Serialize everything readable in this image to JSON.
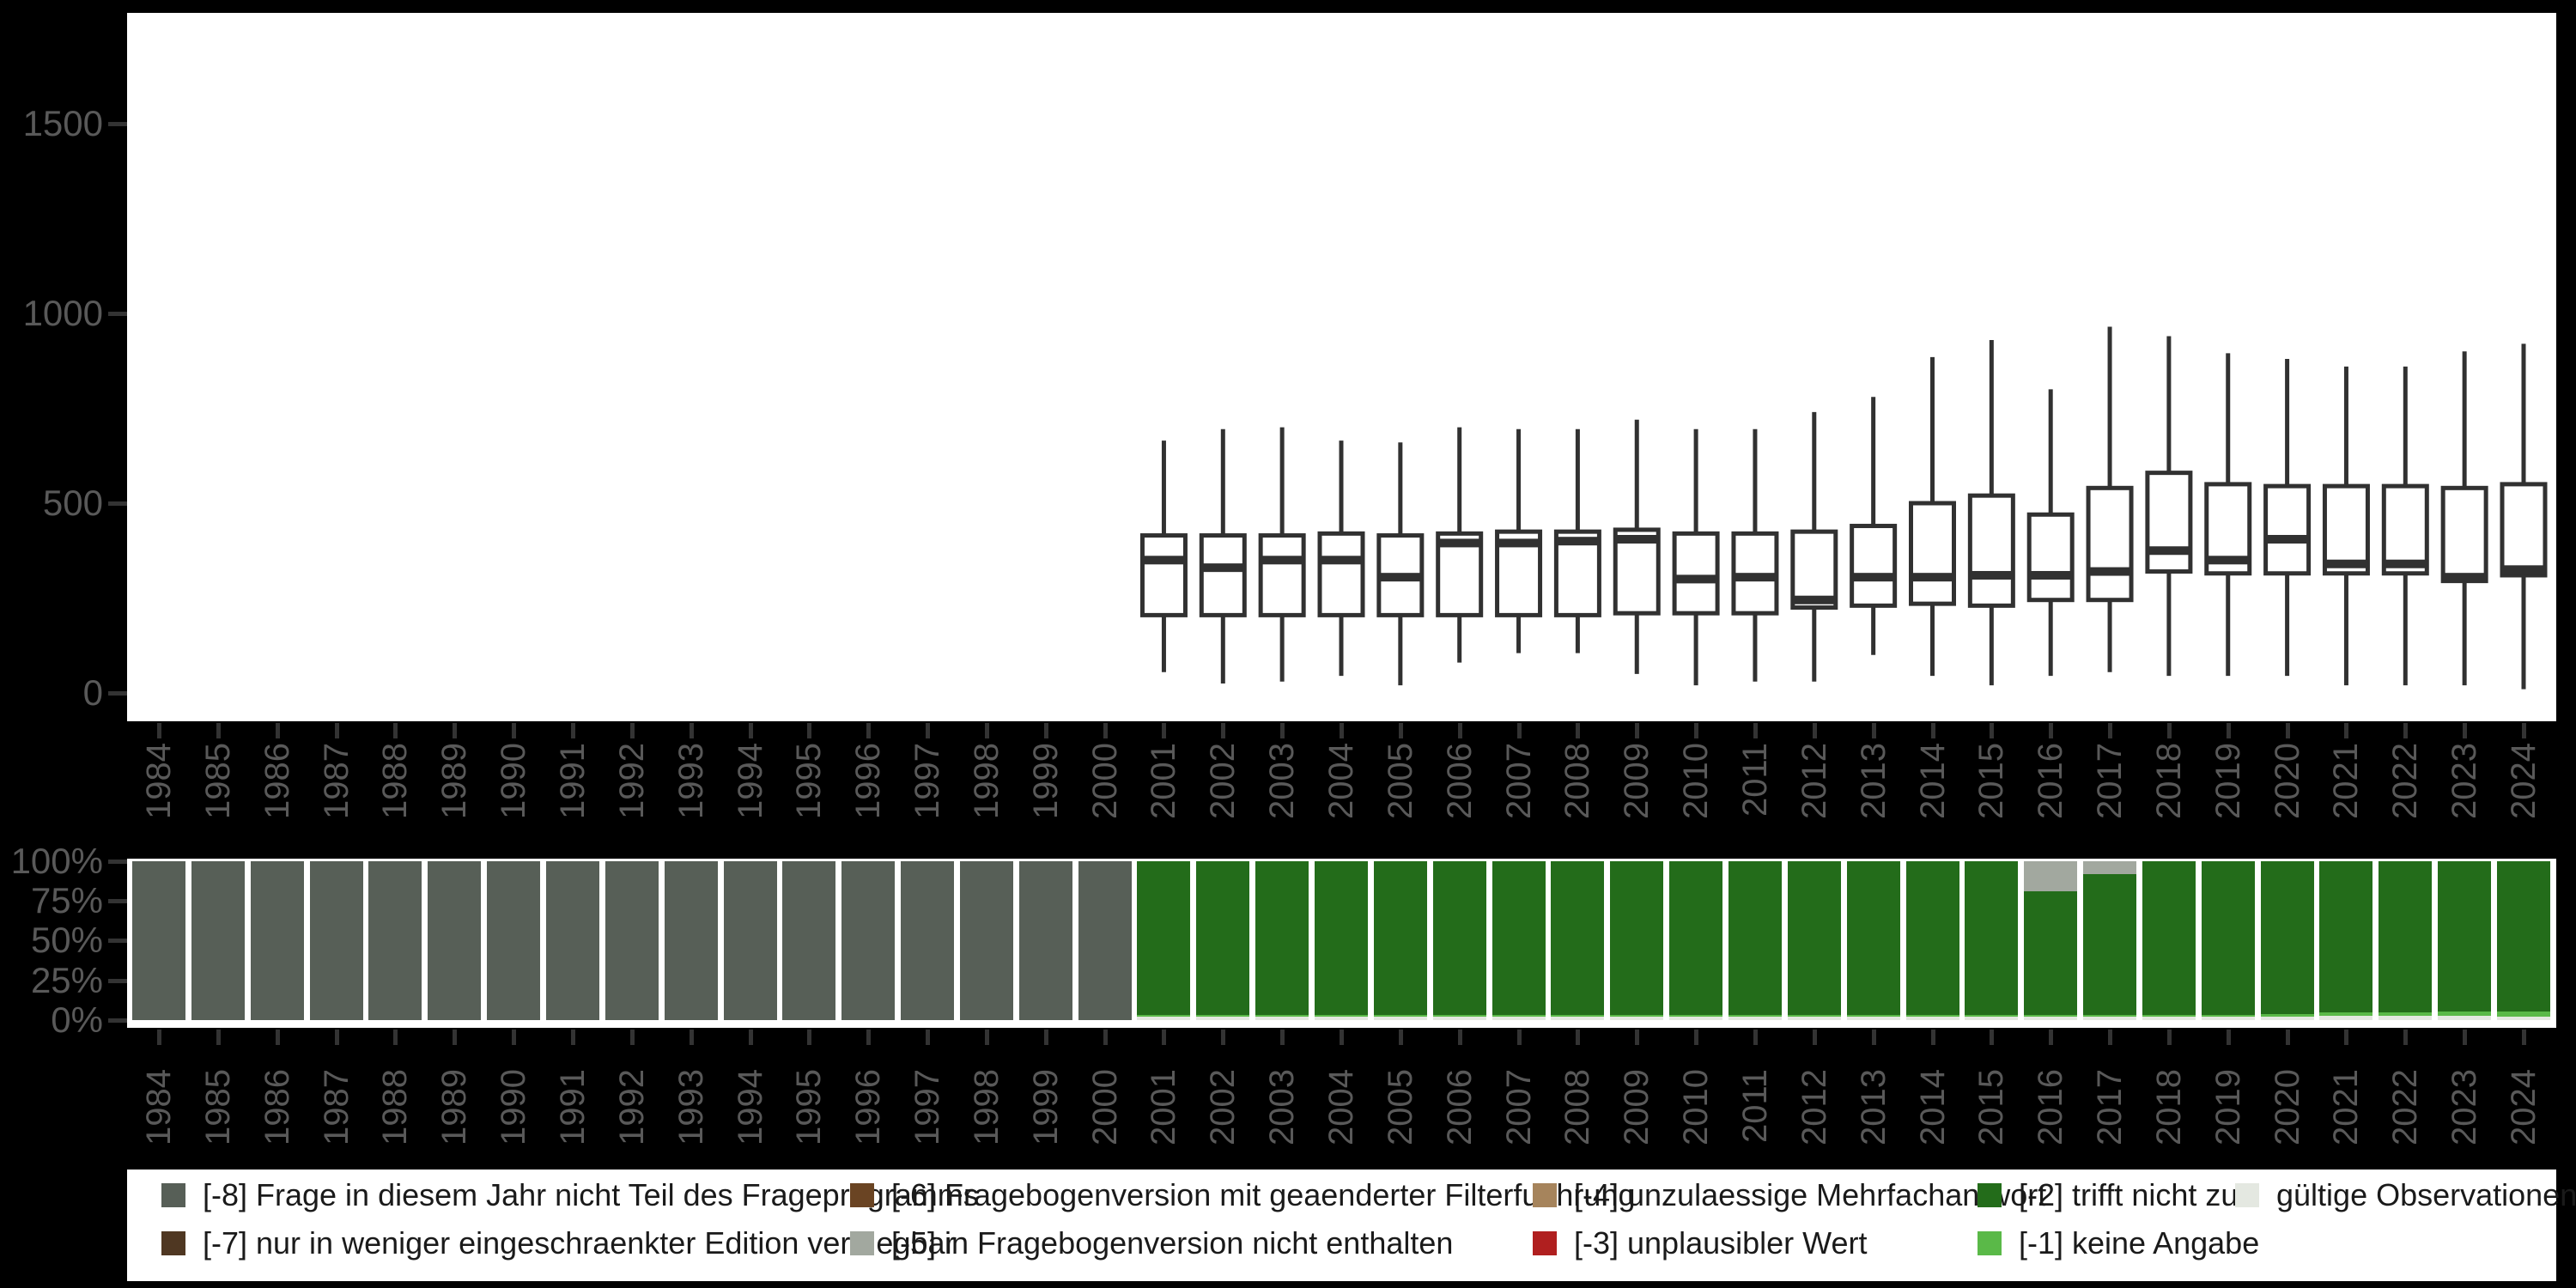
{
  "colors": {
    "background": "#000000",
    "panel": "#ffffff",
    "axis_text": "#595959",
    "tick_mark": "#333333",
    "box_stroke": "#313131",
    "legend_text": "#1a1a1a"
  },
  "axes": {
    "years": [
      1984,
      1985,
      1986,
      1987,
      1988,
      1989,
      1990,
      1991,
      1992,
      1993,
      1994,
      1995,
      1996,
      1997,
      1998,
      1999,
      2000,
      2001,
      2002,
      2003,
      2004,
      2005,
      2006,
      2007,
      2008,
      2009,
      2010,
      2011,
      2012,
      2013,
      2014,
      2015,
      2016,
      2017,
      2018,
      2019,
      2020,
      2021,
      2022,
      2023,
      2024
    ],
    "top_y_ticks": [
      {
        "value": 0,
        "label": "0"
      },
      {
        "value": 500,
        "label": "500"
      },
      {
        "value": 1000,
        "label": "1000"
      },
      {
        "value": 1500,
        "label": "1500"
      }
    ],
    "bottom_y_ticks": [
      {
        "value": 100,
        "label": "100%"
      },
      {
        "value": 75,
        "label": "75%"
      },
      {
        "value": 50,
        "label": "50%"
      },
      {
        "value": 25,
        "label": "25%"
      },
      {
        "value": 0,
        "label": "0%"
      }
    ]
  },
  "chart_data": [
    {
      "type": "boxplot",
      "title": "",
      "xlabel": "",
      "ylabel": "",
      "x_categories": "years 1984-2024, boxes only for 2001-2024",
      "ylim": [
        -90,
        1790
      ],
      "yticks": [
        0,
        500,
        1000,
        1500
      ],
      "grid": false,
      "stats": {
        "2001": {
          "low": 55,
          "q1": 205,
          "median": 350,
          "q3": 415,
          "high": 665
        },
        "2002": {
          "low": 25,
          "q1": 205,
          "median": 330,
          "q3": 415,
          "high": 695
        },
        "2003": {
          "low": 30,
          "q1": 205,
          "median": 350,
          "q3": 415,
          "high": 700
        },
        "2004": {
          "low": 45,
          "q1": 205,
          "median": 350,
          "q3": 420,
          "high": 665
        },
        "2005": {
          "low": 20,
          "q1": 205,
          "median": 305,
          "q3": 415,
          "high": 660
        },
        "2006": {
          "low": 80,
          "q1": 205,
          "median": 395,
          "q3": 420,
          "high": 700
        },
        "2007": {
          "low": 105,
          "q1": 205,
          "median": 395,
          "q3": 425,
          "high": 695
        },
        "2008": {
          "low": 105,
          "q1": 205,
          "median": 400,
          "q3": 425,
          "high": 695
        },
        "2009": {
          "low": 50,
          "q1": 210,
          "median": 405,
          "q3": 430,
          "high": 720
        },
        "2010": {
          "low": 20,
          "q1": 210,
          "median": 300,
          "q3": 420,
          "high": 695
        },
        "2011": {
          "low": 30,
          "q1": 210,
          "median": 305,
          "q3": 420,
          "high": 695
        },
        "2012": {
          "low": 30,
          "q1": 225,
          "median": 245,
          "q3": 425,
          "high": 740
        },
        "2013": {
          "low": 100,
          "q1": 230,
          "median": 305,
          "q3": 440,
          "high": 780
        },
        "2014": {
          "low": 45,
          "q1": 235,
          "median": 305,
          "q3": 500,
          "high": 885
        },
        "2015": {
          "low": 20,
          "q1": 230,
          "median": 310,
          "q3": 520,
          "high": 930
        },
        "2016": {
          "low": 45,
          "q1": 245,
          "median": 310,
          "q3": 470,
          "high": 800
        },
        "2017": {
          "low": 55,
          "q1": 245,
          "median": 320,
          "q3": 540,
          "high": 965
        },
        "2018": {
          "low": 45,
          "q1": 320,
          "median": 375,
          "q3": 580,
          "high": 940
        },
        "2019": {
          "low": 45,
          "q1": 315,
          "median": 350,
          "q3": 550,
          "high": 895
        },
        "2020": {
          "low": 45,
          "q1": 315,
          "median": 405,
          "q3": 545,
          "high": 880
        },
        "2021": {
          "low": 20,
          "q1": 315,
          "median": 340,
          "q3": 545,
          "high": 860
        },
        "2022": {
          "low": 20,
          "q1": 315,
          "median": 340,
          "q3": 545,
          "high": 860
        },
        "2023": {
          "low": 20,
          "q1": 295,
          "median": 305,
          "q3": 540,
          "high": 900
        },
        "2024": {
          "low": 10,
          "q1": 310,
          "median": 325,
          "q3": 550,
          "high": 920
        }
      }
    },
    {
      "type": "bar",
      "stacked": "percent",
      "title": "",
      "xlabel": "",
      "ylabel": "",
      "yticks_percent": [
        0,
        25,
        50,
        75,
        100
      ],
      "grid": false,
      "categories": [
        1984,
        1985,
        1986,
        1987,
        1988,
        1989,
        1990,
        1991,
        1992,
        1993,
        1994,
        1995,
        1996,
        1997,
        1998,
        1999,
        2000,
        2001,
        2002,
        2003,
        2004,
        2005,
        2006,
        2007,
        2008,
        2009,
        2010,
        2011,
        2012,
        2013,
        2014,
        2015,
        2016,
        2017,
        2018,
        2019,
        2020,
        2021,
        2022,
        2023,
        2024
      ],
      "series": [
        {
          "key": "minus5",
          "name": "[-5] in Fragebogenversion nicht enthalten",
          "color": "#a2a89f",
          "values": [
            0,
            0,
            0,
            0,
            0,
            0,
            0,
            0,
            0,
            0,
            0,
            0,
            0,
            0,
            0,
            0,
            0,
            0,
            0,
            0,
            0,
            0,
            0,
            0,
            0,
            0,
            0,
            0,
            0,
            0,
            0,
            0,
            19,
            8,
            0,
            0,
            0,
            0,
            0,
            0,
            0
          ]
        },
        {
          "key": "minus8",
          "name": "[-8] Frage in diesem Jahr nicht Teil des Frageprogramms",
          "color": "#575f57",
          "values": [
            100,
            100,
            100,
            100,
            100,
            100,
            100,
            100,
            100,
            100,
            100,
            100,
            100,
            100,
            100,
            100,
            100,
            0,
            0,
            0,
            0,
            0,
            0,
            0,
            0,
            0,
            0,
            0,
            0,
            0,
            0,
            0,
            0,
            0,
            0,
            0,
            0,
            0,
            0,
            0,
            0
          ]
        },
        {
          "key": "minus2",
          "name": "[-2] trifft nicht zu",
          "color": "#236c1a",
          "values": [
            0,
            0,
            0,
            0,
            0,
            0,
            0,
            0,
            0,
            0,
            0,
            0,
            0,
            0,
            0,
            0,
            0,
            96.5,
            96.5,
            96.5,
            96.5,
            96.5,
            96.5,
            96.5,
            96.5,
            96.5,
            96.5,
            96.5,
            96.5,
            96.5,
            96.5,
            96.5,
            77.5,
            88.5,
            96.5,
            96.5,
            96,
            95,
            95,
            94.5,
            94.5
          ]
        },
        {
          "key": "minus1",
          "name": "[-1] keine Angabe",
          "color": "#5ab948",
          "values": [
            0,
            0,
            0,
            0,
            0,
            0,
            0,
            0,
            0,
            0,
            0,
            0,
            0,
            0,
            0,
            0,
            0,
            1,
            1,
            1,
            1,
            1,
            1,
            1,
            1,
            1,
            1,
            1,
            1,
            1,
            1,
            1,
            1,
            1,
            1,
            1,
            1.5,
            2,
            2,
            2.5,
            3
          ]
        },
        {
          "key": "valid",
          "name": "gültige Observationen",
          "color": "#e4e8e1",
          "values": [
            0,
            0,
            0,
            0,
            0,
            0,
            0,
            0,
            0,
            0,
            0,
            0,
            0,
            0,
            0,
            0,
            0,
            2.5,
            2.5,
            2.5,
            2.5,
            2.5,
            2.5,
            2.5,
            2.5,
            2.5,
            2.5,
            2.5,
            2.5,
            2.5,
            2.5,
            2.5,
            2.5,
            2.5,
            2.5,
            2.5,
            2.5,
            3,
            3,
            3,
            2.5
          ]
        }
      ]
    }
  ],
  "legend": {
    "entries": [
      {
        "label": "[-8] Frage in diesem Jahr nicht Teil des Frageprogramms",
        "color": "#575f57",
        "col": 0,
        "row": 0
      },
      {
        "label": "[-7] nur in weniger eingeschraenkter Edition verfuegbar",
        "color": "#4f3722",
        "col": 0,
        "row": 1
      },
      {
        "label": "[-6] Fragebogenversion mit geaenderter Filterfuehrung",
        "color": "#6a4423",
        "col": 1,
        "row": 0
      },
      {
        "label": "[-5] in Fragebogenversion nicht enthalten",
        "color": "#a2a89f",
        "col": 1,
        "row": 1
      },
      {
        "label": "[-4] unzulaessige Mehrfachantwort",
        "color": "#a6845c",
        "col": 2,
        "row": 0
      },
      {
        "label": "[-3] unplausibler Wert",
        "color": "#b01f1f",
        "col": 2,
        "row": 1
      },
      {
        "label": "[-2] trifft nicht zu",
        "color": "#236c1a",
        "col": 3,
        "row": 0
      },
      {
        "label": "[-1] keine Angabe",
        "color": "#5ab948",
        "col": 3,
        "row": 1
      },
      {
        "label": "gültige Observationen",
        "color": "#e4e8e1",
        "col": 4,
        "row": 0
      }
    ]
  }
}
